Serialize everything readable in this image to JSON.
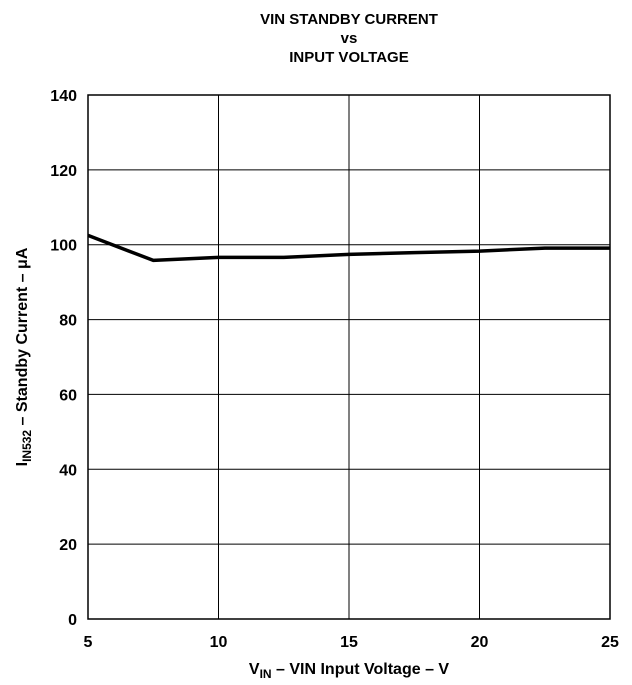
{
  "chart_data": {
    "type": "line",
    "title_lines": [
      "VIN STANDBY CURRENT",
      "vs",
      "INPUT VOLTAGE"
    ],
    "xlabel": {
      "prefix": "V",
      "subscript": "IN",
      "suffix": " – VIN Input Voltage – V"
    },
    "ylabel": {
      "prefix": "I",
      "subscript": "IN532",
      "suffix": " – Standby Current – μA"
    },
    "xlim": [
      5,
      25
    ],
    "ylim": [
      0,
      140
    ],
    "xticks": [
      5,
      10,
      15,
      20,
      25
    ],
    "yticks": [
      0,
      20,
      40,
      60,
      80,
      100,
      120,
      140
    ],
    "grid": true,
    "series": [
      {
        "x": [
          5,
          7.5,
          10,
          12.5,
          15,
          17.5,
          20,
          22.5,
          25
        ],
        "y": [
          102.5,
          95.8,
          96.6,
          96.6,
          97.4,
          97.9,
          98.3,
          99.1,
          99.1
        ],
        "color": "#000000"
      }
    ]
  }
}
